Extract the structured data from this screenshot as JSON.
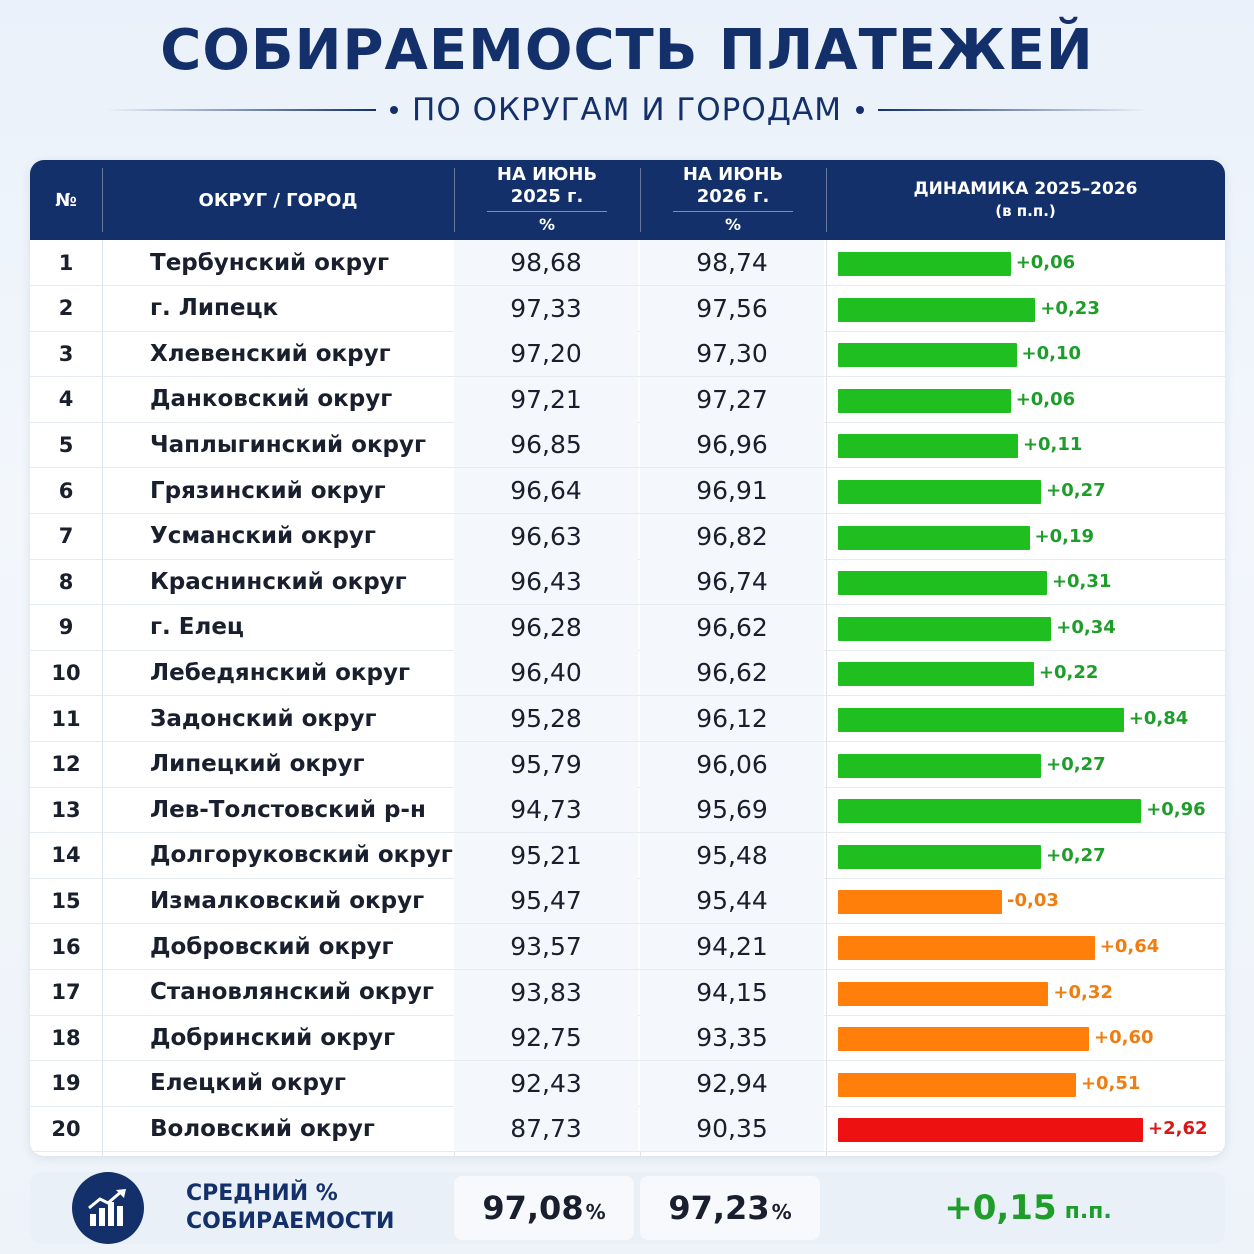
{
  "header": {
    "title": "СОБИРАЕМОСТЬ ПЛАТЕЖЕЙ",
    "subtitle": "ПО ОКРУГАМ И ГОРОДАМ"
  },
  "table_header": {
    "num": "№",
    "name": "ОКРУГ / ГОРОД",
    "col1_top": "НА ИЮНЬ",
    "col1_year": "2025 г.",
    "col1_unit": "%",
    "col2_top": "НА ИЮНЬ",
    "col2_year": "2026 г.",
    "col2_unit": "%",
    "dyn_title": "ДИНАМИКА 2025–2026",
    "dyn_unit": "(в п.п.)"
  },
  "colors": {
    "green": "#1fbf1f",
    "green_text": "#1f9d2a",
    "orange": "#ff7f0a",
    "orange_text": "#f07d10",
    "red": "#ee1111",
    "red_text": "#d81818",
    "navy": "#14306a"
  },
  "chart_data": {
    "type": "table",
    "columns": [
      "№",
      "ОКРУГ / ГОРОД",
      "НА ИЮНЬ 2025 г. %",
      "НА ИЮНЬ 2026 г. %",
      "ДИНАМИКА 2025–2026 (в п.п.)"
    ],
    "rows": [
      {
        "num": "1",
        "name": "Тербунский округ",
        "v2025": "98,68",
        "v2026": "98,74",
        "delta": 0.06,
        "delta_label": "+0,06",
        "color": "green"
      },
      {
        "num": "2",
        "name": "г. Липецк",
        "v2025": "97,33",
        "v2026": "97,56",
        "delta": 0.23,
        "delta_label": "+0,23",
        "color": "green"
      },
      {
        "num": "3",
        "name": "Хлевенский округ",
        "v2025": "97,20",
        "v2026": "97,30",
        "delta": 0.1,
        "delta_label": "+0,10",
        "color": "green"
      },
      {
        "num": "4",
        "name": "Данковский округ",
        "v2025": "97,21",
        "v2026": "97,27",
        "delta": 0.06,
        "delta_label": "+0,06",
        "color": "green"
      },
      {
        "num": "5",
        "name": "Чаплыгинский округ",
        "v2025": "96,85",
        "v2026": "96,96",
        "delta": 0.11,
        "delta_label": "+0,11",
        "color": "green"
      },
      {
        "num": "6",
        "name": "Грязинский округ",
        "v2025": "96,64",
        "v2026": "96,91",
        "delta": 0.27,
        "delta_label": "+0,27",
        "color": "green"
      },
      {
        "num": "7",
        "name": "Усманский округ",
        "v2025": "96,63",
        "v2026": "96,82",
        "delta": 0.19,
        "delta_label": "+0,19",
        "color": "green"
      },
      {
        "num": "8",
        "name": "Краснинский округ",
        "v2025": "96,43",
        "v2026": "96,74",
        "delta": 0.31,
        "delta_label": "+0,31",
        "color": "green"
      },
      {
        "num": "9",
        "name": "г. Елец",
        "v2025": "96,28",
        "v2026": "96,62",
        "delta": 0.34,
        "delta_label": "+0,34",
        "color": "green"
      },
      {
        "num": "10",
        "name": "Лебедянский округ",
        "v2025": "96,40",
        "v2026": "96,62",
        "delta": 0.22,
        "delta_label": "+0,22",
        "color": "green"
      },
      {
        "num": "11",
        "name": "Задонский округ",
        "v2025": "95,28",
        "v2026": "96,12",
        "delta": 0.84,
        "delta_label": "+0,84",
        "color": "green"
      },
      {
        "num": "12",
        "name": "Липецкий округ",
        "v2025": "95,79",
        "v2026": "96,06",
        "delta": 0.27,
        "delta_label": "+0,27",
        "color": "green"
      },
      {
        "num": "13",
        "name": "Лев-Толстовский р-н",
        "v2025": "94,73",
        "v2026": "95,69",
        "delta": 0.96,
        "delta_label": "+0,96",
        "color": "green"
      },
      {
        "num": "14",
        "name": "Долгоруковский округ",
        "v2025": "95,21",
        "v2026": "95,48",
        "delta": 0.27,
        "delta_label": "+0,27",
        "color": "green"
      },
      {
        "num": "15",
        "name": "Измалковский округ",
        "v2025": "95,47",
        "v2026": "95,44",
        "delta": -0.03,
        "delta_label": "-0,03",
        "color": "orange"
      },
      {
        "num": "16",
        "name": "Добровский округ",
        "v2025": "93,57",
        "v2026": "94,21",
        "delta": 0.64,
        "delta_label": "+0,64",
        "color": "orange"
      },
      {
        "num": "17",
        "name": "Становлянский округ",
        "v2025": "93,83",
        "v2026": "94,15",
        "delta": 0.32,
        "delta_label": "+0,32",
        "color": "orange"
      },
      {
        "num": "18",
        "name": "Добринский округ",
        "v2025": "92,75",
        "v2026": "93,35",
        "delta": 0.6,
        "delta_label": "+0,60",
        "color": "orange"
      },
      {
        "num": "19",
        "name": "Елецкий округ",
        "v2025": "92,43",
        "v2026": "92,94",
        "delta": 0.51,
        "delta_label": "+0,51",
        "color": "orange"
      },
      {
        "num": "20",
        "name": "Воловский округ",
        "v2025": "87,73",
        "v2026": "90,35",
        "delta": 2.62,
        "delta_label": "+2,62",
        "color": "red"
      }
    ]
  },
  "footer": {
    "label_line1": "СРЕДНИЙ %",
    "label_line2": "СОБИРАЕМОСТИ",
    "avg2025": "97,08",
    "avg2026": "97,23",
    "unit": "%",
    "delta": "+0,15",
    "delta_unit": "п.п.",
    "icon": "growth-chart-icon"
  }
}
